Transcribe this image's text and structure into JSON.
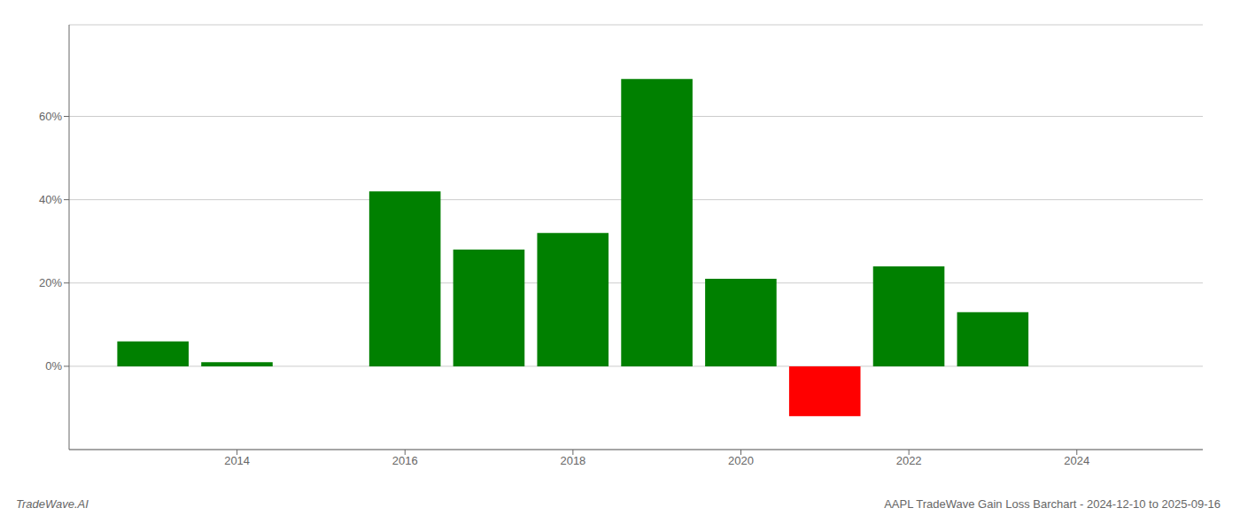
{
  "chart_data": {
    "type": "bar",
    "x": [
      2013,
      2014,
      2016,
      2017,
      2018,
      2019,
      2020,
      2021,
      2022,
      2023
    ],
    "values": [
      0.06,
      0.01,
      0.42,
      0.28,
      0.32,
      0.69,
      0.21,
      -0.12,
      0.24,
      0.13
    ],
    "colors": [
      "#008000",
      "#008000",
      "#008000",
      "#008000",
      "#008000",
      "#008000",
      "#008000",
      "#ff0000",
      "#008000",
      "#008000"
    ],
    "xlim": [
      2012.0,
      2025.5
    ],
    "xticks": [
      2014,
      2016,
      2018,
      2020,
      2022,
      2024
    ],
    "ylim": [
      -0.2,
      0.82
    ],
    "yticks": [
      {
        "value": 0.0,
        "label": "0%"
      },
      {
        "value": 0.2,
        "label": "20%"
      },
      {
        "value": 0.4,
        "label": "40%"
      },
      {
        "value": 0.6,
        "label": "60%"
      }
    ],
    "grid": true,
    "annotations": [
      "TradeWave.AI",
      "AAPL TradeWave Gain Loss Barchart - 2024-12-10 to 2025-09-16"
    ]
  }
}
